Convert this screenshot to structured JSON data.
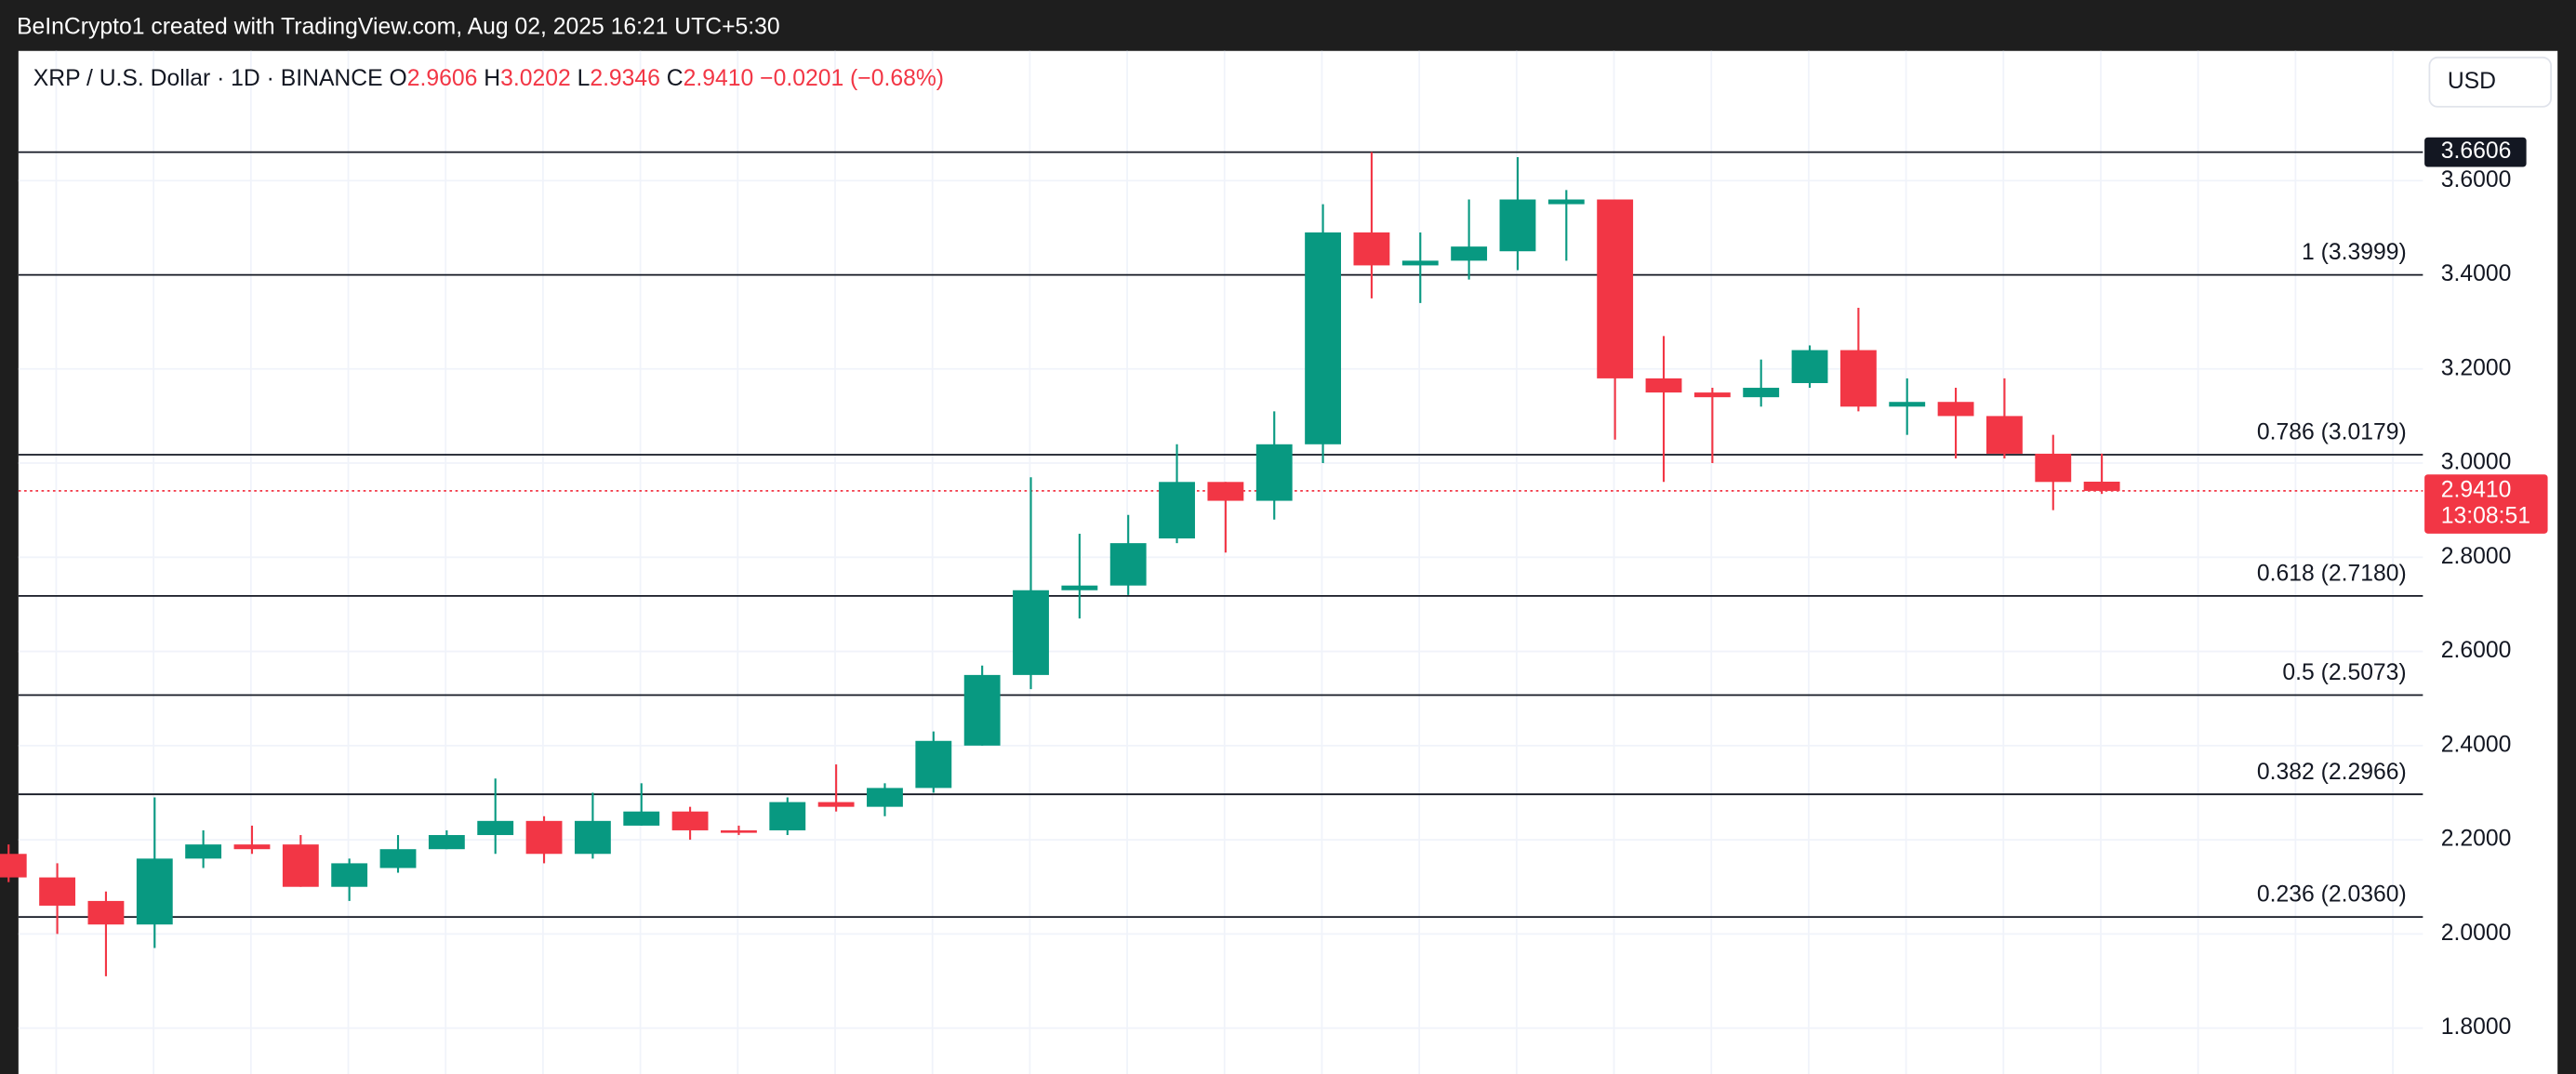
{
  "header": "BeInCrypto1 created with TradingView.com, Aug 02, 2025 16:21 UTC+5:30",
  "currency_button": "USD",
  "chart_data": {
    "type": "candlestick",
    "title": "XRP / U.S. Dollar · 1D · BINANCE",
    "ohlc_legend": [
      {
        "key": "O",
        "value": "2.9606"
      },
      {
        "key": "H",
        "value": "3.0202"
      },
      {
        "key": "L",
        "value": "2.9346"
      },
      {
        "key": "C",
        "value": "2.9410"
      }
    ],
    "change": "−0.0201 (−0.68%)",
    "open": [
      2.17,
      2.12,
      2.07,
      2.02,
      2.16,
      2.19,
      2.19,
      2.1,
      2.14,
      2.18,
      2.21,
      2.24,
      2.17,
      2.23,
      2.26,
      2.22,
      2.22,
      2.28,
      2.27,
      2.31,
      2.4,
      2.55,
      2.73,
      2.74,
      2.84,
      2.96,
      2.92,
      3.04,
      3.49,
      3.42,
      3.43,
      3.45,
      3.55,
      3.56,
      3.18,
      3.15,
      3.14,
      3.17,
      3.24,
      3.12,
      3.13,
      3.1,
      3.02,
      2.9606
    ],
    "high": [
      2.19,
      2.15,
      2.09,
      2.29,
      2.22,
      2.23,
      2.21,
      2.16,
      2.21,
      2.22,
      2.33,
      2.25,
      2.3,
      2.32,
      2.27,
      2.23,
      2.29,
      2.36,
      2.32,
      2.43,
      2.57,
      2.97,
      2.85,
      2.89,
      3.04,
      2.96,
      3.11,
      3.55,
      3.6606,
      3.49,
      3.56,
      3.65,
      3.58,
      3.56,
      3.27,
      3.16,
      3.22,
      3.25,
      3.33,
      3.18,
      3.16,
      3.18,
      3.06,
      3.0202
    ],
    "low": [
      2.11,
      2.0,
      1.91,
      1.97,
      2.14,
      2.17,
      2.1,
      2.07,
      2.13,
      2.18,
      2.17,
      2.15,
      2.16,
      2.23,
      2.2,
      2.21,
      2.21,
      2.26,
      2.25,
      2.3,
      2.4,
      2.52,
      2.67,
      2.72,
      2.83,
      2.81,
      2.88,
      3.0,
      3.35,
      3.34,
      3.39,
      3.41,
      3.43,
      3.05,
      2.96,
      3.0,
      3.12,
      3.16,
      3.11,
      3.06,
      3.01,
      3.01,
      2.9,
      2.9346
    ],
    "close": [
      2.12,
      2.06,
      2.02,
      2.16,
      2.19,
      2.18,
      2.1,
      2.15,
      2.18,
      2.21,
      2.24,
      2.17,
      2.24,
      2.26,
      2.22,
      2.215,
      2.28,
      2.27,
      2.31,
      2.41,
      2.55,
      2.73,
      2.74,
      2.83,
      2.96,
      2.92,
      3.04,
      3.49,
      3.42,
      3.43,
      3.46,
      3.56,
      3.56,
      3.18,
      3.15,
      3.14,
      3.16,
      3.24,
      3.12,
      3.13,
      3.1,
      3.02,
      2.96,
      2.941
    ],
    "up_color": "#089981",
    "down_color": "#f23645",
    "ylim": [
      1.7,
      3.87
    ],
    "yticks": [
      {
        "value": 1.8,
        "label": "1.8000"
      },
      {
        "value": 2.0,
        "label": "2.0000"
      },
      {
        "value": 2.2,
        "label": "2.2000"
      },
      {
        "value": 2.4,
        "label": "2.4000"
      },
      {
        "value": 2.6,
        "label": "2.6000"
      },
      {
        "value": 2.8,
        "label": "2.8000"
      },
      {
        "value": 3.0,
        "label": "3.0000"
      },
      {
        "value": 3.2,
        "label": "3.2000"
      },
      {
        "value": 3.4,
        "label": "3.4000"
      },
      {
        "value": 3.6,
        "label": "3.6000"
      }
    ],
    "grid": true,
    "fib_levels": [
      {
        "label": "1 (3.3999)",
        "value": 3.3999
      },
      {
        "label": "0.786 (3.0179)",
        "value": 3.0179
      },
      {
        "label": "0.618 (2.7180)",
        "value": 2.718
      },
      {
        "label": "0.5 (2.5073)",
        "value": 2.5073
      },
      {
        "label": "0.382 (2.2966)",
        "value": 2.2966
      },
      {
        "label": "0.236 (2.0360)",
        "value": 2.036
      }
    ],
    "high_marker": 3.6606,
    "last_price": {
      "value": 2.941,
      "label": "2.9410"
    },
    "countdown": "13:08:51"
  }
}
